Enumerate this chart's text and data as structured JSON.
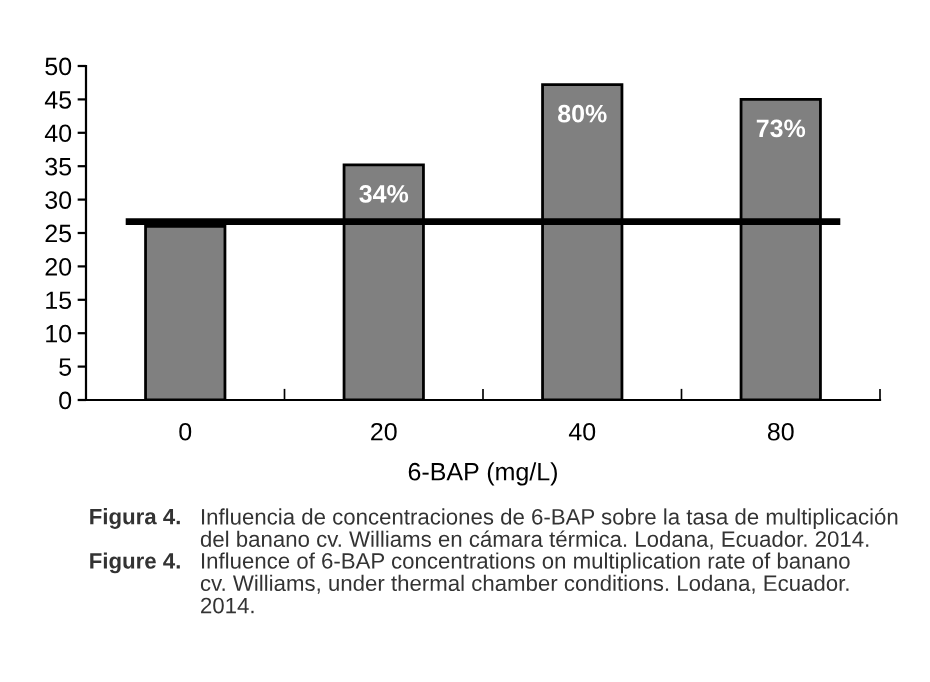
{
  "chart_data": {
    "type": "bar",
    "xlabel": "6-BAP (mg/L)",
    "categories": [
      "0",
      "20",
      "40",
      "80"
    ],
    "series": [
      {
        "color": "#808080",
        "values": [
          26,
          35.2,
          47.2,
          45
        ]
      }
    ],
    "ylim": [
      0,
      50
    ],
    "yticks": [
      0,
      5,
      10,
      15,
      20,
      25,
      30,
      35,
      40,
      45,
      50
    ],
    "grid": false,
    "legend": false,
    "ref_lines": [
      {
        "axis": "y",
        "value": 26.7,
        "color": "#000000",
        "line_style": "solid"
      }
    ],
    "annotations": [
      {
        "text": "34%",
        "x": "20",
        "y": 35.2
      },
      {
        "text": "80%",
        "x": "40",
        "y": 47.2
      },
      {
        "text": "73%",
        "x": "80",
        "y": 45
      },
      "Figura 4.",
      "Influencia de concentraciones de 6-BAP sobre la tasa de multiplicación\ndel banano cv. Williams en cámara térmica. Lodana, Ecuador. 2014.",
      "Figure 4.",
      "Influence of 6-BAP concentrations on multiplication rate of banano\ncv. Williams, under thermal chamber conditions. Lodana, Ecuador.\n2014."
    ]
  }
}
